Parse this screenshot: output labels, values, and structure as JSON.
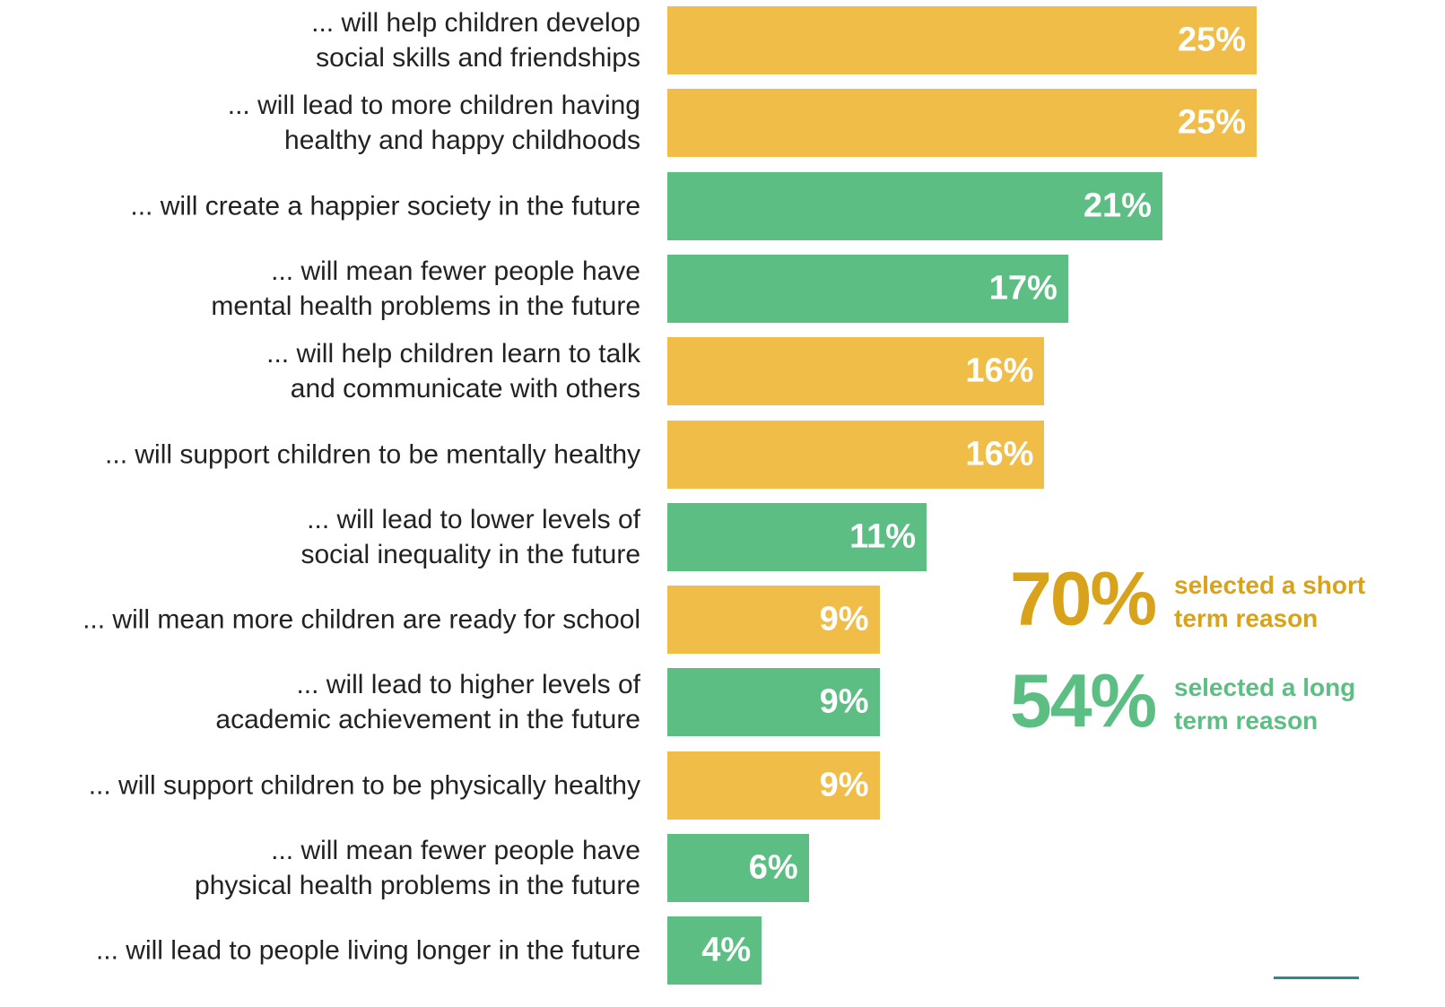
{
  "chart_data": {
    "type": "bar",
    "orientation": "horizontal",
    "categories": [
      "... will help children develop\nsocial skills and friendships",
      "... will lead to more children having\nhealthy and happy childhoods",
      "... will create a happier society in the future",
      "... will mean fewer people have\nmental health problems in the future",
      "... will help children learn to talk\nand communicate with others",
      "... will support children to be mentally healthy",
      "... will lead to lower levels of\nsocial inequality in the future",
      "... will mean more children are ready for school",
      "... will lead to higher levels of\nacademic achievement in the future",
      "... will support children to be physically healthy",
      "... will mean fewer people have\nphysical health problems in the future",
      "... will lead to people living longer in the future"
    ],
    "values": [
      25,
      25,
      21,
      17,
      16,
      16,
      11,
      9,
      9,
      9,
      6,
      4
    ],
    "value_labels": [
      "25%",
      "25%",
      "21%",
      "17%",
      "16%",
      "16%",
      "11%",
      "9%",
      "9%",
      "9%",
      "6%",
      "4%"
    ],
    "colors": [
      "#f0be48",
      "#f0be48",
      "#5dbe84",
      "#5dbe84",
      "#f0be48",
      "#f0be48",
      "#5dbe84",
      "#f0be48",
      "#5dbe84",
      "#f0be48",
      "#5dbe84",
      "#5dbe84"
    ],
    "annotations": [
      {
        "value": "70%",
        "text": "selected a short\nterm reason",
        "color": "#d9a21b"
      },
      {
        "value": "54%",
        "text": "selected a long\nterm reason",
        "color": "#5dbe84"
      }
    ]
  }
}
